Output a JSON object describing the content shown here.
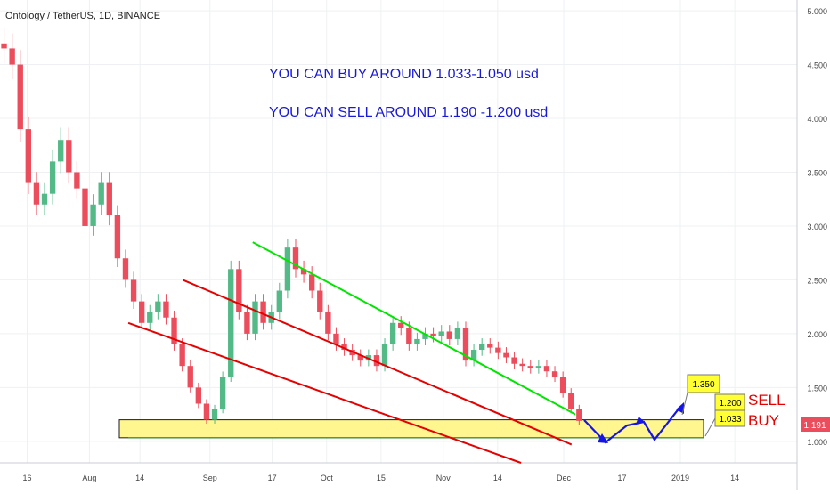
{
  "header": {
    "title": "Ontology / TetherUS, 1D, BINANCE"
  },
  "annotations": {
    "buy_text": "YOU CAN BUY AROUND  1.033-1.050 usd",
    "sell_text": "YOU CAN SELL AROUND 1.190 -1.200 usd",
    "sell_label": "SELL",
    "buy_label": "BUY",
    "target_callouts": [
      "1.350",
      "1.200",
      "1.033"
    ],
    "current_price": "1.191"
  },
  "colors": {
    "up": "#53b987",
    "down": "#eb4d5c",
    "channel_upper": "#00e600",
    "channel_lower": "#e60000",
    "zone_fill": "#fff68f",
    "annotation_text": "#1a1ad6",
    "sell_buy_text": "#e60000",
    "callout_fill": "#ffff33",
    "arrow": "#1414e6",
    "price_badge": "#eb4d5c"
  },
  "chart_data": {
    "type": "candlestick",
    "y_axis": {
      "ticks": [
        1.0,
        1.5,
        2.0,
        2.5,
        3.0,
        3.5,
        4.0,
        4.5,
        5.0
      ],
      "labels": [
        "1.000",
        "1.500",
        "2.000",
        "2.500",
        "3.000",
        "3.500",
        "4.000",
        "4.500",
        "5.000"
      ],
      "range": [
        0.8,
        5.1
      ]
    },
    "x_axis": {
      "labels": [
        "16",
        "Aug",
        "14",
        "Sep",
        "17",
        "Oct",
        "15",
        "Nov",
        "14",
        "Dec",
        "17",
        "2019",
        "14"
      ],
      "label_days": [
        0,
        16,
        29,
        47,
        63,
        77,
        91,
        107,
        121,
        138,
        153,
        168,
        182
      ],
      "range_days": [
        -7,
        198
      ]
    },
    "closes": [
      4.65,
      4.5,
      3.9,
      3.4,
      3.2,
      3.3,
      3.6,
      3.8,
      3.5,
      3.35,
      3.0,
      3.2,
      3.4,
      3.1,
      2.7,
      2.5,
      2.3,
      2.1,
      2.2,
      2.3,
      2.15,
      1.9,
      1.7,
      1.5,
      1.35,
      1.2,
      1.3,
      1.6,
      2.6,
      2.2,
      2.0,
      2.3,
      2.1,
      2.2,
      2.4,
      2.8,
      2.6,
      2.55,
      2.4,
      2.2,
      2.0,
      1.9,
      1.85,
      1.8,
      1.75,
      1.8,
      1.7,
      1.9,
      2.1,
      2.05,
      1.9,
      1.95,
      2.0,
      1.98,
      2.02,
      1.95,
      2.05,
      1.75,
      1.85,
      1.9,
      1.87,
      1.82,
      1.78,
      1.72,
      1.7,
      1.68,
      1.7,
      1.65,
      1.6,
      1.45,
      1.3,
      1.19
    ],
    "price_zones": [
      {
        "label": "buy zone",
        "low": 1.033,
        "high": 1.2
      }
    ],
    "price_labels": [
      1.35,
      1.2,
      1.033
    ],
    "current_price": 1.191,
    "trendlines": [
      {
        "name": "upper channel",
        "color": "green",
        "points": [
          [
            58,
            2.85
          ],
          [
            141,
            1.25
          ]
        ]
      },
      {
        "name": "middle channel",
        "color": "red",
        "points": [
          [
            40,
            2.5
          ],
          [
            140,
            0.97
          ]
        ]
      },
      {
        "name": "lower channel",
        "color": "red",
        "points": [
          [
            26,
            2.1
          ],
          [
            127,
            0.8
          ]
        ]
      }
    ]
  }
}
